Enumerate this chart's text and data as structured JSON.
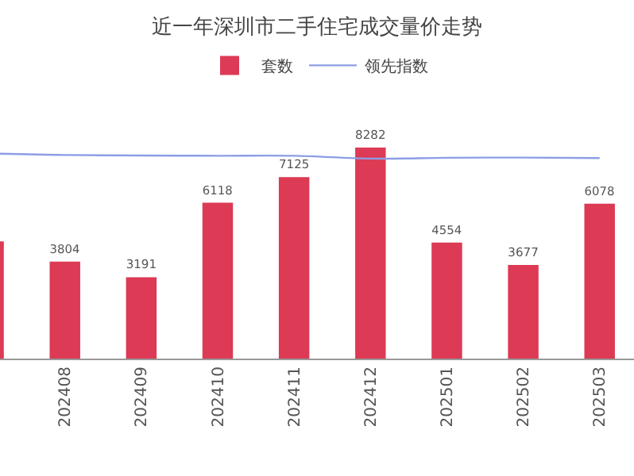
{
  "chart_data": {
    "type": "bar",
    "title": "近一年深圳市二手住宅成交量价走势",
    "categories": [
      null,
      "202408",
      "202409",
      "202410",
      "202411",
      "202412",
      "202501",
      "202502",
      "202503"
    ],
    "series": [
      {
        "name": "套数",
        "color": "#dc3a55",
        "values": [
          4600,
          3804,
          3191,
          6118,
          7125,
          8282,
          4554,
          3677,
          6078
        ],
        "value_labels": [
          null,
          "3804",
          "3191",
          "6118",
          "7125",
          "8282",
          "4554",
          "3677",
          "6078"
        ]
      },
      {
        "name": "领先指数",
        "type": "line",
        "color": "#8c9ee6",
        "values": [
          8050,
          7990,
          7970,
          7960,
          7960,
          7850,
          7880,
          7890,
          7870
        ]
      }
    ],
    "legend": "top",
    "marker": "none",
    "line_style": "solid",
    "grid": false
  }
}
